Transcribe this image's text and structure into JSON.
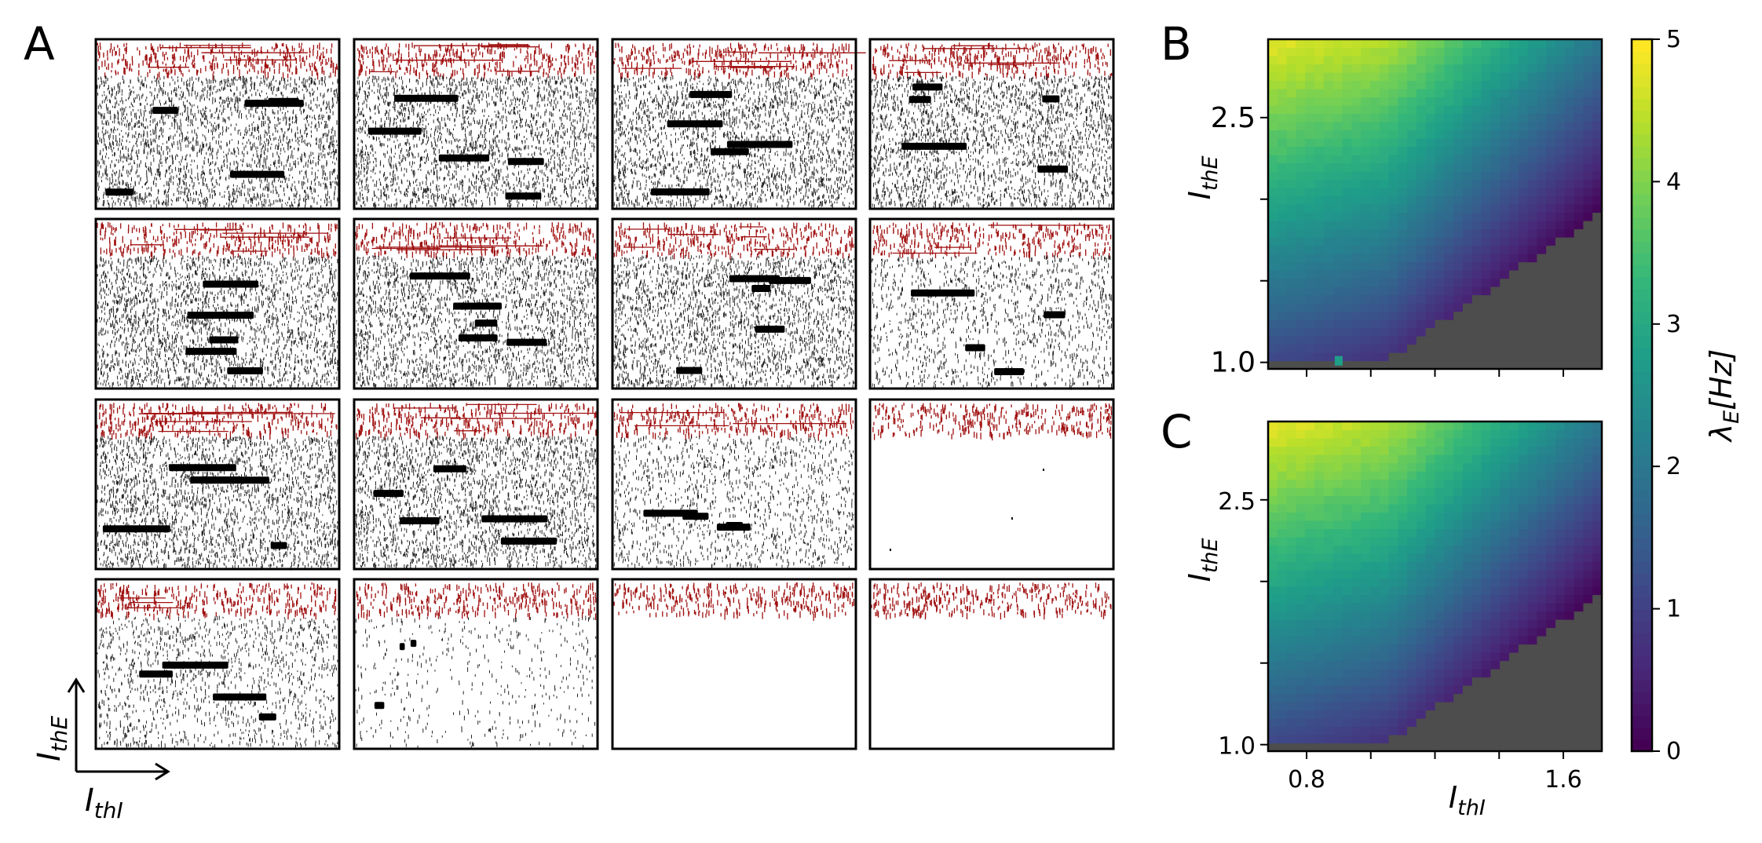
{
  "colors": {
    "excitatory": "#a01010",
    "raster": "#000000",
    "invalid": "#4d4d4d",
    "viridis": [
      "#440154",
      "#482878",
      "#3e4989",
      "#31688e",
      "#26828e",
      "#1f9e89",
      "#35b779",
      "#6ece58",
      "#b5de2b",
      "#fde725"
    ]
  },
  "panels": {
    "A": {
      "label": "A",
      "grid_rows": 4,
      "grid_cols": 4,
      "axis_x_label": "I",
      "axis_x_sub": "thI",
      "axis_y_label": "I",
      "axis_y_sub": "thE",
      "raster_regime": [
        [
          "dense",
          "dense",
          "dense",
          "dense"
        ],
        [
          "dense",
          "dense",
          "dense",
          "medium"
        ],
        [
          "dense",
          "dense",
          "medium",
          "silent"
        ],
        [
          "medium",
          "sparse",
          "silent",
          "silent"
        ]
      ]
    },
    "B": {
      "label": "B"
    },
    "C": {
      "label": "C"
    }
  },
  "chart_data": [
    {
      "type": "heatmap",
      "panel": "B",
      "xlabel": "I",
      "xlabel_sub": "thI",
      "ylabel": "I",
      "ylabel_sub": "thE",
      "xlim": [
        0.68,
        1.72
      ],
      "ylim": [
        0.96,
        2.98
      ],
      "xticks": [
        0.8,
        1.0,
        1.2,
        1.4,
        1.6
      ],
      "xticklabels": [
        "",
        "",
        "",
        "",
        ""
      ],
      "yticks": [
        1.0,
        1.5,
        2.0,
        2.5
      ],
      "yticklabels": [
        "1.0",
        "",
        "",
        "2.5"
      ],
      "grid": false,
      "value_range": [
        0,
        5
      ],
      "rate_model": "lambda_E ≈ 5 at (I_thI=0.7, I_thE=2.95) decreasing toward 0 near the invalid boundary",
      "outlier": {
        "x": 0.9,
        "y": 1.0,
        "value": 2.8
      }
    },
    {
      "type": "heatmap",
      "panel": "C",
      "xlabel": "I",
      "xlabel_sub": "thI",
      "ylabel": "I",
      "ylabel_sub": "thE",
      "xlim": [
        0.68,
        1.72
      ],
      "ylim": [
        0.96,
        2.98
      ],
      "xticks": [
        0.8,
        1.0,
        1.2,
        1.4,
        1.6
      ],
      "xticklabels": [
        "0.8",
        "",
        "",
        "",
        "1.6"
      ],
      "yticks": [
        1.0,
        1.5,
        2.0,
        2.5
      ],
      "yticklabels": [
        "1.0",
        "",
        "",
        "2.5"
      ],
      "grid": false,
      "value_range": [
        0,
        5
      ]
    },
    {
      "type": "colorbar",
      "label": "λ",
      "label_sub": "E",
      "label_unit": "[Hz]",
      "range": [
        0,
        5
      ],
      "ticks": [
        0,
        1,
        2,
        3,
        4,
        5
      ],
      "ticklabels": [
        "0",
        "1",
        "2",
        "3",
        "4",
        "5"
      ]
    }
  ]
}
